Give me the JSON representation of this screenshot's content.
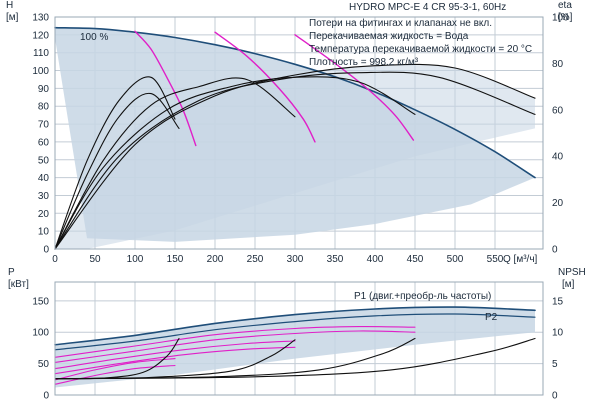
{
  "title": "HYDRO MPC-E 4 CR 95-3-1, 60Hz",
  "notes": [
    "Потери на фитингах и клапанах не вкл.",
    "Перекачиваемая жидкость = Вода",
    "Температура перекачиваемой жидкости = 20 °C",
    "Плотность = 998.2 кг/м³"
  ],
  "colors": {
    "envelope": "#c7d6e4",
    "max_curve": "#1f4e79",
    "partial": "#e020c8",
    "eta": "#111111",
    "p1": "#1f4e79",
    "grid": "#c3ccd5",
    "text": "#1b2a3a"
  },
  "chart_data": [
    {
      "type": "line",
      "title": "HYDRO MPC-E 4 CR 95-3-1, 60Hz",
      "xlabel": "Q [м³/ч]",
      "x_ticks": [
        "0",
        "50",
        "100",
        "150",
        "200",
        "250",
        "300",
        "350",
        "400",
        "450",
        "500",
        "550"
      ],
      "xlim": [
        0,
        610
      ],
      "ylabel": "H\n[м]",
      "y_ticks": [
        "0",
        "10",
        "20",
        "30",
        "40",
        "50",
        "60",
        "70",
        "80",
        "90",
        "100",
        "110",
        "120",
        "130"
      ],
      "ylim": [
        0,
        130
      ],
      "y2label": "eta\n[%]",
      "y2_ticks": [
        "0",
        "20",
        "40",
        "60",
        "80",
        "100"
      ],
      "y2lim": [
        0,
        100
      ],
      "annotation": "100 %",
      "grid": true,
      "series": [
        {
          "kind": "max_head",
          "x": [
            0,
            50,
            100,
            150,
            200,
            250,
            300,
            350,
            400,
            450,
            500,
            550,
            600
          ],
          "y": [
            124,
            123.5,
            121.5,
            118.5,
            114.5,
            109.5,
            103.5,
            96.5,
            88,
            78,
            67,
            54.5,
            40
          ]
        },
        {
          "kind": "partial_head",
          "x": [
            100,
            120,
            140,
            160,
            176
          ],
          "y": [
            122,
            112,
            96,
            78,
            58
          ]
        },
        {
          "kind": "partial_head",
          "x": [
            200,
            240,
            280,
            310,
            325
          ],
          "y": [
            121.5,
            108,
            90,
            73,
            60
          ]
        },
        {
          "kind": "partial_head",
          "x": [
            300,
            350,
            390,
            425,
            448
          ],
          "y": [
            120,
            104,
            90,
            75,
            61
          ]
        },
        {
          "kind": "eta",
          "x": [
            0,
            40,
            80,
            120,
            150
          ],
          "y": [
            0,
            38,
            64,
            74,
            56
          ]
        },
        {
          "kind": "eta",
          "x": [
            0,
            40,
            80,
            120,
            155
          ],
          "y": [
            0,
            32,
            57,
            67,
            52
          ]
        },
        {
          "kind": "eta",
          "x": [
            0,
            60,
            120,
            180,
            240,
            300
          ],
          "y": [
            0,
            38,
            62,
            70,
            73,
            57
          ]
        },
        {
          "kind": "eta",
          "x": [
            0,
            60,
            140,
            220,
            300,
            380,
            450
          ],
          "y": [
            0,
            35,
            60,
            70,
            74,
            72,
            58
          ]
        },
        {
          "kind": "eta",
          "x": [
            0,
            80,
            180,
            280,
            380,
            480,
            600
          ],
          "y": [
            0,
            40,
            64,
            73,
            76,
            74,
            58
          ]
        },
        {
          "kind": "eta",
          "x": [
            0,
            100,
            200,
            300,
            400,
            500,
            600
          ],
          "y": [
            0,
            45,
            66,
            75,
            79,
            78,
            65
          ]
        }
      ]
    },
    {
      "type": "line",
      "xlim": [
        0,
        610
      ],
      "ylabel": "P\n[кВт]",
      "y_ticks": [
        "0",
        "50",
        "100",
        "150"
      ],
      "ylim": [
        0,
        180
      ],
      "y2label": "NPSH\n[м]",
      "y2_ticks": [
        "0",
        "5",
        "10",
        "15"
      ],
      "y2lim": [
        0,
        18
      ],
      "grid": true,
      "series": [
        {
          "name": "P1 (двиг.+преобр-ль частоты)",
          "kind": "p1_max",
          "x": [
            0,
            100,
            200,
            300,
            400,
            500,
            600
          ],
          "y": [
            80,
            95,
            114,
            128,
            137,
            140,
            135
          ]
        },
        {
          "name": "P2",
          "kind": "p2_max",
          "x": [
            0,
            100,
            200,
            300,
            400,
            500,
            600
          ],
          "y": [
            72,
            86,
            104,
            117,
            126,
            129,
            124
          ]
        },
        {
          "kind": "p_partial",
          "x": [
            0,
            100,
            200,
            300,
            380,
            450
          ],
          "y": [
            60,
            78,
            96,
            106,
            109,
            108
          ]
        },
        {
          "kind": "p_partial",
          "x": [
            0,
            100,
            200,
            300,
            380,
            450
          ],
          "y": [
            52,
            70,
            88,
            98,
            102,
            100
          ]
        },
        {
          "kind": "p_partial",
          "x": [
            0,
            80,
            160,
            240,
            300
          ],
          "y": [
            42,
            58,
            72,
            82,
            86
          ]
        },
        {
          "kind": "p_partial",
          "x": [
            0,
            80,
            160,
            240,
            300
          ],
          "y": [
            34,
            50,
            64,
            73,
            76
          ]
        },
        {
          "kind": "p_partial",
          "x": [
            0,
            50,
            100,
            150
          ],
          "y": [
            24,
            40,
            52,
            58
          ]
        },
        {
          "kind": "p_partial",
          "x": [
            0,
            50,
            100,
            150
          ],
          "y": [
            17,
            31,
            42,
            47
          ]
        },
        {
          "kind": "npsh",
          "x": [
            0,
            60,
            110,
            140,
            155
          ],
          "y": [
            2.6,
            2.7,
            3.6,
            6.2,
            9.0
          ]
        },
        {
          "kind": "npsh",
          "x": [
            0,
            120,
            220,
            270,
            300
          ],
          "y": [
            2.6,
            2.8,
            3.8,
            6.2,
            8.8
          ]
        },
        {
          "kind": "npsh",
          "x": [
            0,
            200,
            330,
            410,
            450
          ],
          "y": [
            2.6,
            2.9,
            4.0,
            6.6,
            9.0
          ]
        },
        {
          "kind": "npsh",
          "x": [
            0,
            250,
            420,
            540,
            600
          ],
          "y": [
            2.6,
            2.9,
            4.0,
            6.8,
            9.0
          ]
        }
      ]
    }
  ]
}
